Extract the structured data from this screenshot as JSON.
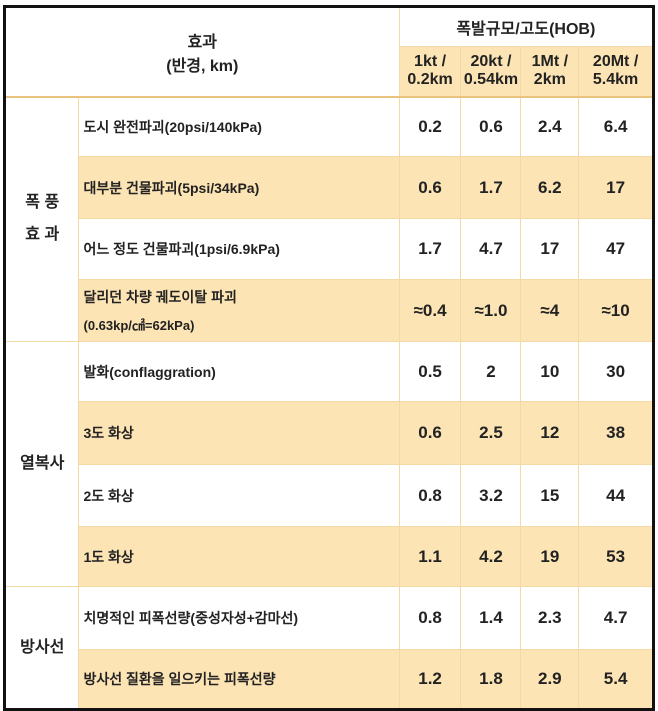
{
  "header": {
    "effect_title": "효과",
    "effect_unit": "(반경, km)",
    "scale_title": "폭발규모/고도(HOB)",
    "columns": [
      [
        "1kt /",
        "0.2km"
      ],
      [
        "20kt /",
        "0.54km"
      ],
      [
        "1Mt /",
        "2km"
      ],
      [
        "20Mt /",
        "5.4km"
      ]
    ]
  },
  "groups": [
    {
      "label_lines": [
        "폭 풍",
        "효 과"
      ],
      "rows": [
        {
          "effect": "도시 완전파괴(20psi/140kPa)",
          "values": [
            "0.2",
            "0.6",
            "2.4",
            "6.4"
          ]
        },
        {
          "effect": "대부분 건물파괴(5psi/34kPa)",
          "values": [
            "0.6",
            "1.7",
            "6.2",
            "17"
          ]
        },
        {
          "effect": "어느 정도 건물파괴(1psi/6.9kPa)",
          "values": [
            "1.7",
            "4.7",
            "17",
            "47"
          ]
        },
        {
          "effect": "달리던 차량 궤도이탈 파괴",
          "effect2": "(0.63kp/㎠=62kPa)",
          "values": [
            "≈0.4",
            "≈1.0",
            "≈4",
            "≈10"
          ]
        }
      ]
    },
    {
      "label_lines": [
        "열복사"
      ],
      "rows": [
        {
          "effect": "발화(conflaggration)",
          "values": [
            "0.5",
            "2",
            "10",
            "30"
          ]
        },
        {
          "effect": "3도 화상",
          "values": [
            "0.6",
            "2.5",
            "12",
            "38"
          ]
        },
        {
          "effect": "2도 화상",
          "values": [
            "0.8",
            "3.2",
            "15",
            "44"
          ]
        },
        {
          "effect": "1도 화상",
          "values": [
            "1.1",
            "4.2",
            "19",
            "53"
          ]
        }
      ]
    },
    {
      "label_lines": [
        "방사선"
      ],
      "rows": [
        {
          "effect": "치명적인 피폭선량(중성자성+감마선)",
          "values": [
            "0.8",
            "1.4",
            "2.3",
            "4.7"
          ]
        },
        {
          "effect": "방사선 질환을 일으키는 피폭선량",
          "values": [
            "1.2",
            "1.8",
            "2.9",
            "5.4"
          ]
        }
      ]
    }
  ],
  "colors": {
    "tan": "#fce4b5",
    "border": "#f3d9a4"
  }
}
